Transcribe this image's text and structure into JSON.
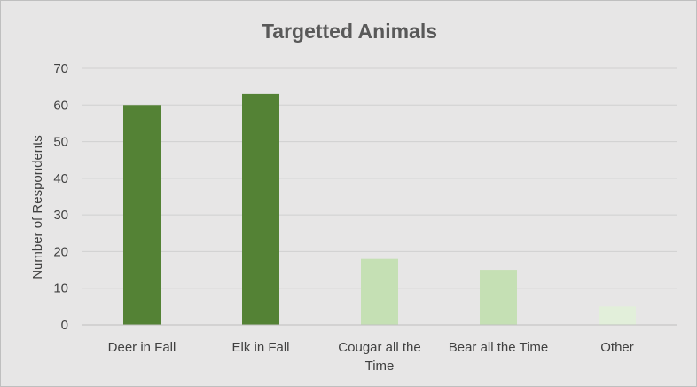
{
  "chart_data": {
    "type": "bar",
    "title": "Targetted Animals",
    "xlabel": "",
    "ylabel": "Number of Respondents",
    "ylim": [
      0,
      70
    ],
    "yticks": [
      0,
      10,
      20,
      30,
      40,
      50,
      60,
      70
    ],
    "grid": true,
    "legend": "none",
    "categories": [
      [
        "Deer in Fall"
      ],
      [
        "Elk in Fall"
      ],
      [
        "Cougar all the",
        "Time"
      ],
      [
        "Bear all the Time"
      ],
      [
        "Other"
      ]
    ],
    "values": [
      60,
      63,
      18,
      15,
      5
    ],
    "bar_colors": [
      "#548235",
      "#548235",
      "#c5e0b4",
      "#c5e0b4",
      "#e2efda"
    ]
  }
}
